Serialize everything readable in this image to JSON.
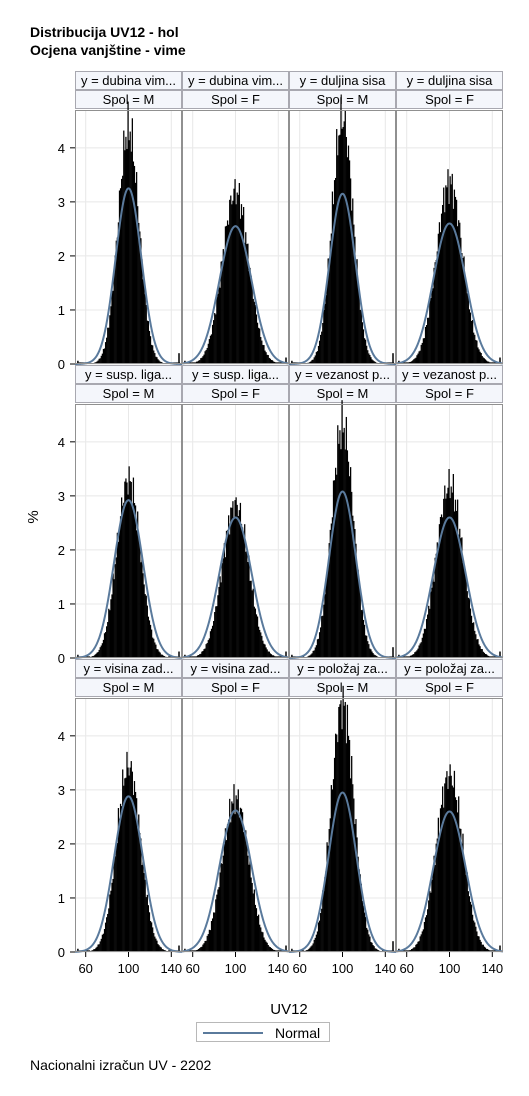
{
  "titles": {
    "line1": "Distribucija UV12 - hol",
    "line2": "Ocjena vanjštine - vime"
  },
  "footnote": "Nacionalni izračun UV - 2202",
  "colors": {
    "bars": "#000000",
    "normal_curve": "#5a7a9c",
    "header_bg": "#f4f6fb",
    "grid": "#e8e8e8",
    "frame": "#909090"
  },
  "chart_data": {
    "type": "histogram",
    "xlabel": "UV12",
    "ylabel": "%",
    "x_ticks": [
      60,
      100,
      140
    ],
    "y_ticks": [
      0,
      1,
      2,
      3,
      4
    ],
    "xlim": [
      50,
      150
    ],
    "ylim": [
      0,
      4.7
    ],
    "legend": {
      "entries": [
        "Normal"
      ],
      "position": "bottom"
    },
    "grid": true,
    "panels": [
      {
        "row": 0,
        "col": 0,
        "y_label": "y = dubina vim...",
        "spol": "Spol = M",
        "hist_peak": 4.35,
        "normal_peak": 3.25,
        "sd": 12
      },
      {
        "row": 0,
        "col": 1,
        "y_label": "y = dubina vim...",
        "spol": "Spol = F",
        "hist_peak": 3.2,
        "normal_peak": 2.55,
        "sd": 15
      },
      {
        "row": 0,
        "col": 2,
        "y_label": "y = duljina sisa",
        "spol": "Spol = M",
        "hist_peak": 4.55,
        "normal_peak": 3.15,
        "sd": 12
      },
      {
        "row": 0,
        "col": 3,
        "y_label": "y = duljina sisa",
        "spol": "Spol = F",
        "hist_peak": 3.35,
        "normal_peak": 2.6,
        "sd": 15
      },
      {
        "row": 1,
        "col": 0,
        "y_label": "y = susp. liga...",
        "spol": "Spol = M",
        "hist_peak": 3.3,
        "normal_peak": 2.92,
        "sd": 13.5
      },
      {
        "row": 1,
        "col": 1,
        "y_label": "y = susp. liga...",
        "spol": "Spol = F",
        "hist_peak": 2.85,
        "normal_peak": 2.6,
        "sd": 15
      },
      {
        "row": 1,
        "col": 2,
        "y_label": "y = vezanost p...",
        "spol": "Spol = M",
        "hist_peak": 4.3,
        "normal_peak": 3.08,
        "sd": 12.5
      },
      {
        "row": 1,
        "col": 3,
        "y_label": "y = vezanost p...",
        "spol": "Spol = F",
        "hist_peak": 3.2,
        "normal_peak": 2.6,
        "sd": 15
      },
      {
        "row": 2,
        "col": 0,
        "y_label": "y = visina zad...",
        "spol": "Spol = M",
        "hist_peak": 3.45,
        "normal_peak": 2.88,
        "sd": 13.5
      },
      {
        "row": 2,
        "col": 1,
        "y_label": "y = visina zad...",
        "spol": "Spol = F",
        "hist_peak": 2.85,
        "normal_peak": 2.62,
        "sd": 15
      },
      {
        "row": 2,
        "col": 2,
        "y_label": "y = položaj za...",
        "spol": "Spol = M",
        "hist_peak": 4.6,
        "normal_peak": 2.95,
        "sd": 13
      },
      {
        "row": 2,
        "col": 3,
        "y_label": "y = položaj za...",
        "spol": "Spol = F",
        "hist_peak": 3.28,
        "normal_peak": 2.6,
        "sd": 15
      }
    ]
  }
}
